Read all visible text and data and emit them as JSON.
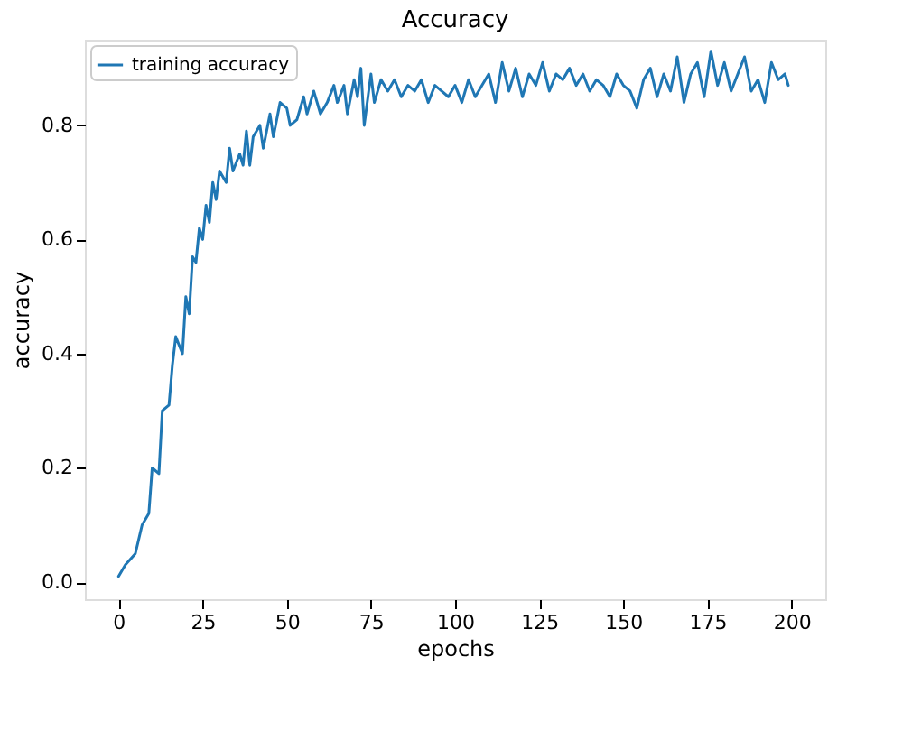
{
  "chart_data": {
    "type": "line",
    "title": "Accuracy",
    "xlabel": "epochs",
    "ylabel": "accuracy",
    "xlim": [
      -10,
      210
    ],
    "xticks": [
      0,
      25,
      50,
      75,
      100,
      125,
      150,
      175,
      200
    ],
    "ylim": [
      -0.03,
      0.95
    ],
    "yticks": [
      {
        "value": 0,
        "label": "0.0"
      },
      0.2,
      0.4,
      0.6,
      0.8
    ],
    "legend": "top left",
    "grid": false,
    "series": [
      {
        "name": "training accuracy",
        "color": "#1f77b4",
        "x": [
          0,
          2,
          5,
          7,
          9,
          10,
          12,
          13,
          15,
          16,
          17,
          19,
          20,
          21,
          22,
          23,
          24,
          25,
          26,
          27,
          28,
          29,
          30,
          32,
          33,
          34,
          36,
          37,
          38,
          39,
          40,
          42,
          43,
          45,
          46,
          48,
          50,
          51,
          53,
          55,
          56,
          58,
          60,
          62,
          64,
          65,
          67,
          68,
          70,
          71,
          72,
          73,
          75,
          76,
          78,
          80,
          82,
          84,
          86,
          88,
          90,
          92,
          94,
          96,
          98,
          100,
          102,
          104,
          106,
          108,
          110,
          112,
          114,
          116,
          118,
          120,
          122,
          124,
          126,
          128,
          130,
          132,
          134,
          136,
          138,
          140,
          142,
          144,
          146,
          148,
          150,
          152,
          154,
          156,
          158,
          160,
          162,
          164,
          166,
          168,
          170,
          172,
          174,
          176,
          178,
          180,
          182,
          184,
          186,
          188,
          190,
          192,
          194,
          196,
          198,
          199
        ],
        "values": [
          0.01,
          0.03,
          0.05,
          0.1,
          0.12,
          0.2,
          0.19,
          0.3,
          0.31,
          0.38,
          0.43,
          0.4,
          0.5,
          0.47,
          0.57,
          0.56,
          0.62,
          0.6,
          0.66,
          0.63,
          0.7,
          0.67,
          0.72,
          0.7,
          0.76,
          0.72,
          0.75,
          0.73,
          0.79,
          0.73,
          0.78,
          0.8,
          0.76,
          0.82,
          0.78,
          0.84,
          0.83,
          0.8,
          0.81,
          0.85,
          0.82,
          0.86,
          0.82,
          0.84,
          0.87,
          0.84,
          0.87,
          0.82,
          0.88,
          0.85,
          0.9,
          0.8,
          0.89,
          0.84,
          0.88,
          0.86,
          0.88,
          0.85,
          0.87,
          0.86,
          0.88,
          0.84,
          0.87,
          0.86,
          0.85,
          0.87,
          0.84,
          0.88,
          0.85,
          0.87,
          0.89,
          0.84,
          0.91,
          0.86,
          0.9,
          0.85,
          0.89,
          0.87,
          0.91,
          0.86,
          0.89,
          0.88,
          0.9,
          0.87,
          0.89,
          0.86,
          0.88,
          0.87,
          0.85,
          0.89,
          0.87,
          0.86,
          0.83,
          0.88,
          0.9,
          0.85,
          0.89,
          0.86,
          0.92,
          0.84,
          0.89,
          0.91,
          0.85,
          0.93,
          0.87,
          0.91,
          0.86,
          0.89,
          0.92,
          0.86,
          0.88,
          0.84,
          0.91,
          0.88,
          0.89,
          0.87
        ]
      }
    ]
  }
}
